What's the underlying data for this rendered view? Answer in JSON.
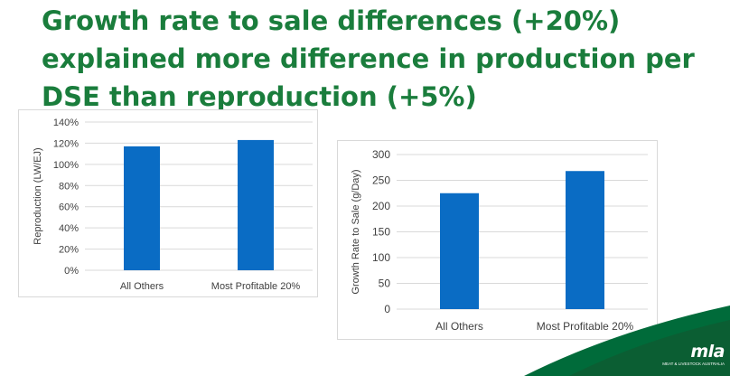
{
  "slide": {
    "title": "Growth rate to sale differences (+20%) explained more difference in production per DSE than reproduction (+5%)"
  },
  "logo": {
    "mark": "mla",
    "tagline": "MEAT & LIVESTOCK AUSTRALIA"
  },
  "colors": {
    "title_green": "#1a7d3c",
    "bar_blue": "#0a6cc4",
    "footer_green": "#006b3a"
  },
  "chart_data": [
    {
      "type": "bar",
      "categories": [
        "All Others",
        "Most Profitable 20%"
      ],
      "values": [
        117,
        123
      ],
      "value_unit": "percent",
      "title": "",
      "xlabel": "",
      "ylabel": "Reproduction (LW/EJ)",
      "ylim": [
        0,
        140
      ],
      "yticks": [
        "0%",
        "20%",
        "40%",
        "60%",
        "80%",
        "100%",
        "120%",
        "140%"
      ],
      "grid": true,
      "legend": "none"
    },
    {
      "type": "bar",
      "categories": [
        "All Others",
        "Most Profitable 20%"
      ],
      "values": [
        225,
        268
      ],
      "title": "",
      "xlabel": "",
      "ylabel": "Growth Rate to Sale (g/Day)",
      "ylim": [
        0,
        300
      ],
      "yticks": [
        "0",
        "50",
        "100",
        "150",
        "200",
        "250",
        "300"
      ],
      "grid": true,
      "legend": "none"
    }
  ]
}
